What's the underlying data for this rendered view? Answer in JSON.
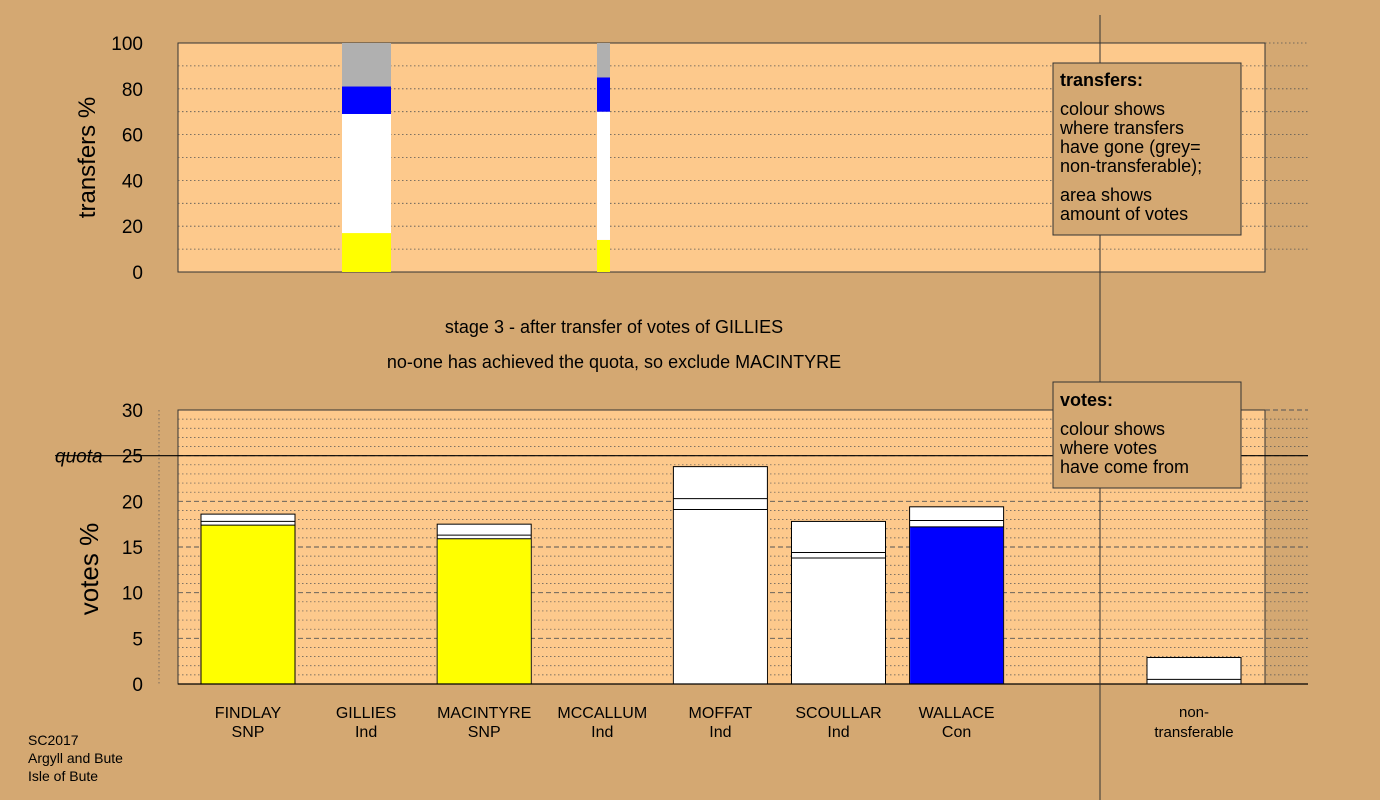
{
  "background_color": "#d4a872",
  "plot_background_color": "#fdc98c",
  "party_colors": {
    "SNP": "#ffff00",
    "Ind": "#ffffff",
    "Con": "#0000ff",
    "non_transferable": "#b0b0b0"
  },
  "stage_text": "stage 3 - after transfer of votes of GILLIES",
  "status_text": "no-one has achieved the quota, so exclude MACINTYRE",
  "footer": [
    "SC2017",
    "Argyll and Bute",
    "Isle of Bute"
  ],
  "transfers_legend": {
    "title": "transfers:",
    "lines": [
      "colour shows",
      "where transfers",
      "have gone (grey=",
      "non-transferable);",
      "area shows",
      "amount of votes"
    ]
  },
  "votes_legend": {
    "title": "votes:",
    "lines": [
      "colour shows",
      "where votes",
      "have come from"
    ]
  },
  "chart_data": [
    {
      "type": "bar",
      "stacked": true,
      "ylabel": "transfers %",
      "ylim": [
        0,
        100
      ],
      "yticks": [
        0,
        20,
        40,
        60,
        80,
        100
      ],
      "grid": true,
      "columns": [
        {
          "position": "GILLIES",
          "width": "wide",
          "segments": [
            {
              "color": "#ffff00",
              "from": 0,
              "to": 17
            },
            {
              "color": "#ffffff",
              "from": 17,
              "to": 69
            },
            {
              "color": "#0000ff",
              "from": 69,
              "to": 81
            },
            {
              "color": "#b0b0b0",
              "from": 81,
              "to": 100
            }
          ]
        },
        {
          "position": "MOFFAT-left",
          "width": "narrow",
          "segments": [
            {
              "color": "#ffff00",
              "from": 0,
              "to": 14
            },
            {
              "color": "#ffffff",
              "from": 14,
              "to": 70
            },
            {
              "color": "#0000ff",
              "from": 70,
              "to": 85
            },
            {
              "color": "#b0b0b0",
              "from": 85,
              "to": 100
            }
          ]
        }
      ]
    },
    {
      "type": "bar",
      "stacked": true,
      "ylabel": "votes %",
      "ylim": [
        0,
        30
      ],
      "yticks": [
        0,
        5,
        10,
        15,
        20,
        25,
        30
      ],
      "quota": 25,
      "quota_label": "quota",
      "grid": true,
      "categories": [
        {
          "name": "FINDLAY",
          "party": "SNP",
          "color": "#ffff00",
          "layers": [
            17.4,
            17.8,
            18.6
          ]
        },
        {
          "name": "GILLIES",
          "party": "Ind",
          "color": "#ffffff",
          "layers": []
        },
        {
          "name": "MACINTYRE",
          "party": "SNP",
          "color": "#ffff00",
          "layers": [
            15.9,
            16.3,
            17.5
          ]
        },
        {
          "name": "MCCALLUM",
          "party": "Ind",
          "color": "#ffffff",
          "layers": []
        },
        {
          "name": "MOFFAT",
          "party": "Ind",
          "color": "#ffffff",
          "layers": [
            19.1,
            20.3,
            23.8
          ]
        },
        {
          "name": "SCOULLAR",
          "party": "Ind",
          "color": "#ffffff",
          "layers": [
            13.8,
            14.4,
            17.8
          ]
        },
        {
          "name": "WALLACE",
          "party": "Con",
          "color": "#0000ff",
          "layers": [
            17.2,
            17.9,
            19.4
          ]
        }
      ],
      "non_transferable": {
        "label_lines": [
          "non-",
          "transferable"
        ],
        "color": "#ffffff",
        "layers": [
          0.5,
          2.9
        ]
      }
    }
  ]
}
